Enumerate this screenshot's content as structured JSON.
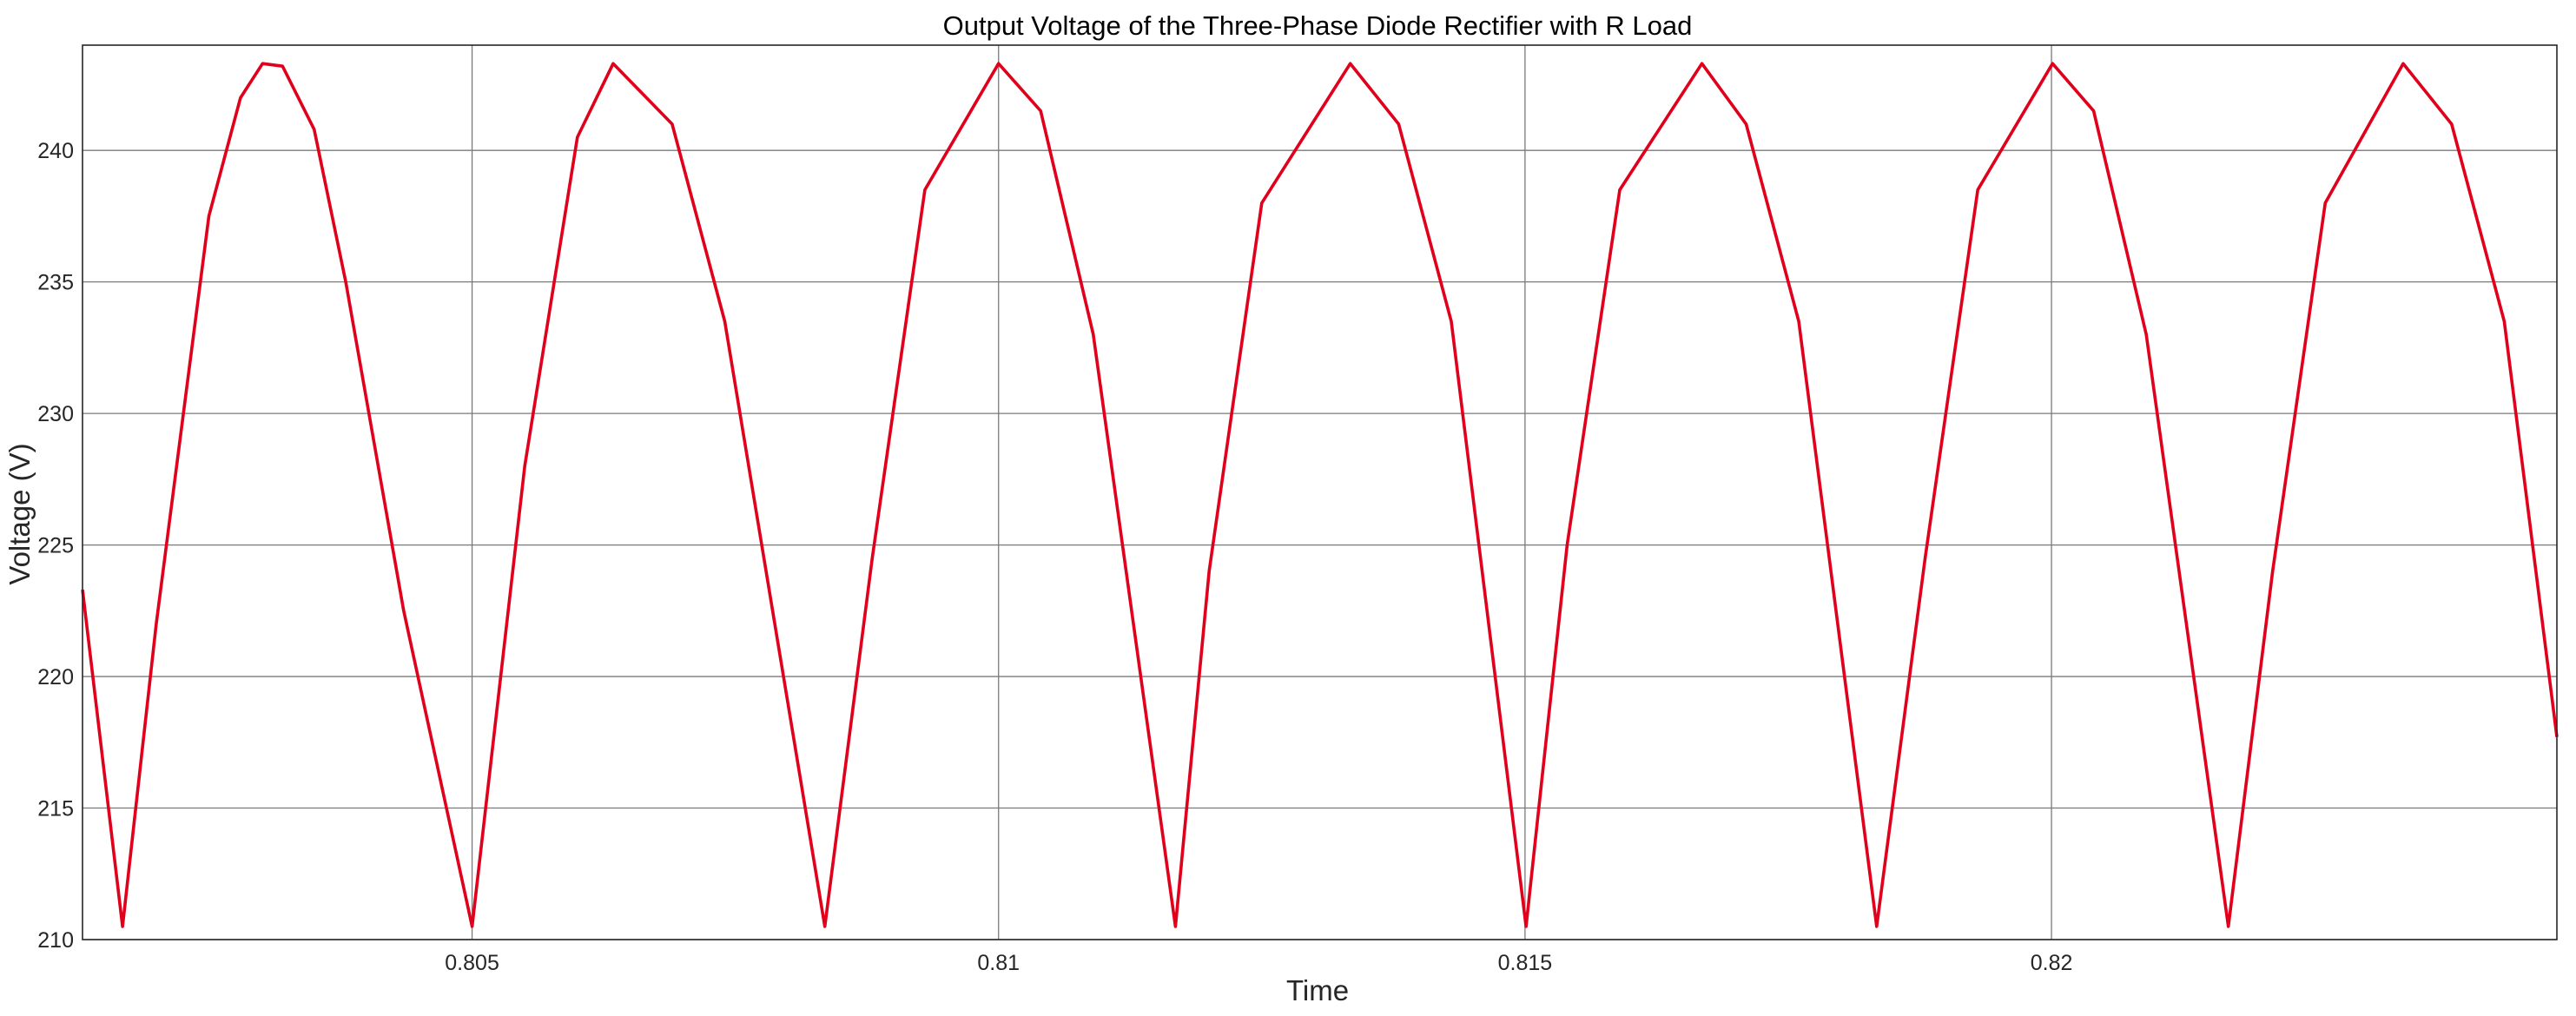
{
  "chart_data": {
    "type": "line",
    "title": "Output Voltage of the Three-Phase Diode Rectifier with R Load",
    "xlabel": "Time",
    "ylabel": "Voltage (V)",
    "xlim": [
      0.8013,
      0.8248
    ],
    "ylim": [
      210,
      244
    ],
    "xticks": [
      0.805,
      0.81,
      0.815,
      0.82
    ],
    "xtick_labels": [
      "0.805",
      "0.81",
      "0.815",
      "0.82"
    ],
    "yticks": [
      210,
      215,
      220,
      225,
      230,
      235,
      240
    ],
    "ytick_labels": [
      "210",
      "215",
      "220",
      "225",
      "230",
      "235",
      "240"
    ],
    "grid": true,
    "legend": "none",
    "series": [
      {
        "color": "#e0001b",
        "x": [
          0.8013,
          0.80168,
          0.802,
          0.8025,
          0.8028,
          0.80301,
          0.8032,
          0.8035,
          0.8038,
          0.80435,
          0.805,
          0.8055,
          0.806,
          0.80634,
          0.8069,
          0.8074,
          0.80835,
          0.8088,
          0.8093,
          0.81,
          0.8104,
          0.8109,
          0.81168,
          0.812,
          0.8125,
          0.81334,
          0.8138,
          0.8143,
          0.81501,
          0.8154,
          0.8159,
          0.81668,
          0.8171,
          0.8176,
          0.81834,
          0.8188,
          0.8193,
          0.82001,
          0.8204,
          0.8209,
          0.82168,
          0.8221,
          0.8226,
          0.82334,
          0.8238,
          0.8243,
          0.8248
        ],
        "y": [
          223.3,
          210.5,
          222.0,
          237.5,
          242.0,
          243.3,
          243.2,
          240.8,
          235.0,
          222.5,
          210.5,
          228.0,
          240.5,
          243.3,
          241.0,
          233.5,
          210.5,
          224.5,
          238.5,
          243.3,
          241.5,
          233.0,
          210.5,
          224.0,
          238.0,
          243.3,
          241.0,
          233.5,
          210.5,
          225.0,
          238.5,
          243.3,
          241.0,
          233.5,
          210.5,
          224.5,
          238.5,
          243.3,
          241.5,
          233.0,
          210.5,
          224.0,
          238.0,
          243.3,
          241.0,
          233.5,
          217.7
        ]
      }
    ]
  }
}
